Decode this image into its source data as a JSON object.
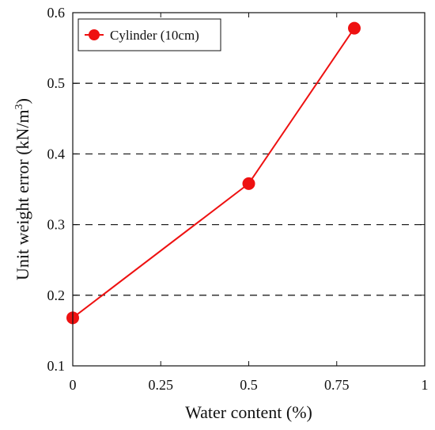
{
  "chart_data": {
    "type": "line",
    "title": "",
    "xlabel": "Water content (%)",
    "ylabel": "Unit weight error (kN/m³)",
    "xlim": [
      0,
      1
    ],
    "ylim": [
      0.1,
      0.6
    ],
    "x_ticks": [
      {
        "value": 0,
        "label": "0"
      },
      {
        "value": 0.25,
        "label": "0.25"
      },
      {
        "value": 0.5,
        "label": "0.5"
      },
      {
        "value": 0.75,
        "label": "0.75"
      },
      {
        "value": 1,
        "label": "1"
      }
    ],
    "y_ticks": [
      {
        "value": 0.1,
        "label": "0.1"
      },
      {
        "value": 0.2,
        "label": "0.2"
      },
      {
        "value": 0.3,
        "label": "0.3"
      },
      {
        "value": 0.4,
        "label": "0.4"
      },
      {
        "value": 0.5,
        "label": "0.5"
      },
      {
        "value": 0.6,
        "label": "0.6"
      }
    ],
    "grid": {
      "horizontal_dashed_at": [
        0.2,
        0.3,
        0.4,
        0.5
      ]
    },
    "legend": {
      "position": "top-left"
    },
    "series": [
      {
        "name": "Cylinder (10cm)",
        "color": "#ee1111",
        "marker": "circle",
        "points": [
          {
            "x": 0,
            "y": 0.168
          },
          {
            "x": 0.5,
            "y": 0.358
          },
          {
            "x": 0.8,
            "y": 0.578
          }
        ]
      }
    ]
  }
}
